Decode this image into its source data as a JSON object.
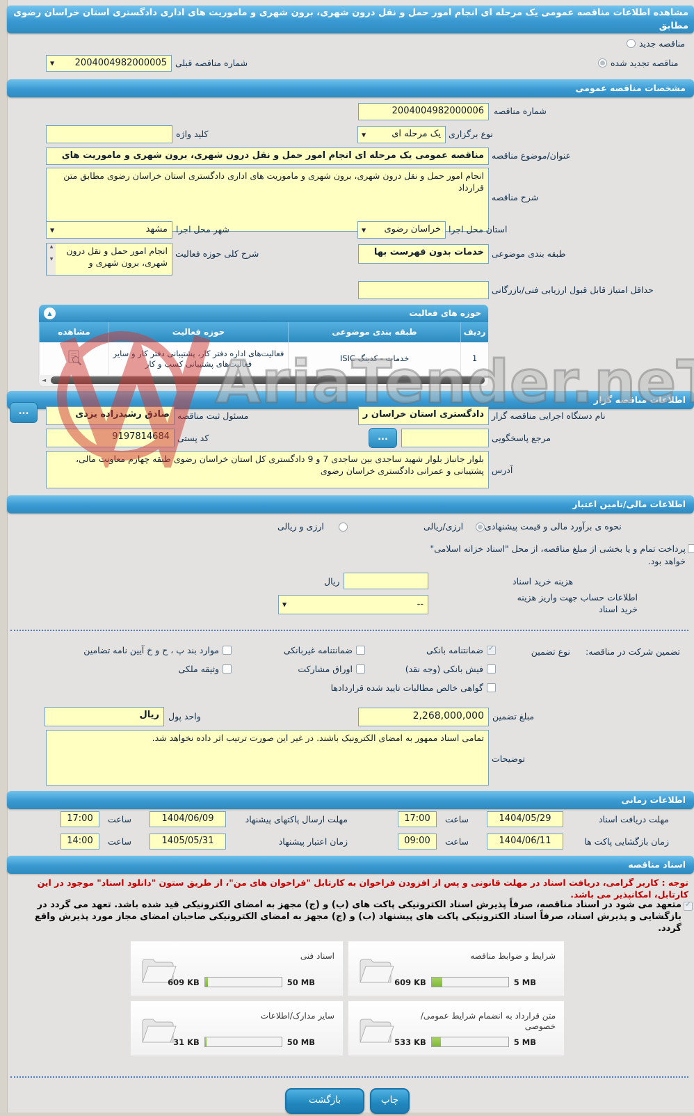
{
  "title": "مشاهده اطلاعات مناقصه عمومی یک مرحله ای انجام امور حمل و نقل درون شهری، برون شهری و ماموریت های اداری دادگستری استان خراسان رضوی مطابق",
  "tender_type": {
    "new_label": "مناقصه جدید",
    "new_checked": false,
    "renewed_label": "مناقصه تجدید شده",
    "renewed_checked": true,
    "prev_number_label": "شماره مناقصه قبلی",
    "prev_number_value": "2004004982000005"
  },
  "general": {
    "header": "مشخصات مناقصه عمومی",
    "number_label": "شماره مناقصه",
    "number_value": "2004004982000006",
    "hold_type_label": "نوع برگزاری",
    "hold_type_value": "یک مرحله ای",
    "keyword_label": "کلید واژه",
    "keyword_value": "",
    "subject_label": "عنوان/موضوع مناقصه",
    "subject_value": "مناقصه عمومی یک مرحله ای انجام امور حمل و نقل درون شهری، برون شهری و ماموریت های",
    "desc_label": "شرح مناقصه",
    "desc_value": "انجام امور حمل و نقل درون شهری، برون شهری و ماموریت های اداری دادگستری استان خراسان رضوی مطابق متن قرارداد",
    "province_label": "استان محل اجرا",
    "province_value": "خراسان رضوی",
    "city_label": "شهر محل اجرا",
    "city_value": "مشهد",
    "class_label": "طبقه بندی موضوعی",
    "class_value": "خدمات بدون فهرست بها",
    "activity_desc_label": "شرح کلی حوزه فعالیت",
    "activity_desc_value": "انجام امور حمل و نقل درون شهری، برون شهری و",
    "min_score_label": "حداقل امتیاز قابل قبول ارزیابی فنی/بازرگانی",
    "min_score_value": ""
  },
  "activity_table": {
    "header": "حوزه های فعالیت",
    "columns": [
      "ردیف",
      "طبقه بندی موضوعی",
      "حوزه فعالیت",
      "مشاهده"
    ],
    "rows": [
      {
        "row_no": "1",
        "category": "خدمات - کدینگ ISIC",
        "field": "فعالیت‌های اداره دفتر کار، پشتیبانی دفتر کار و سایر فعالیت‌های پشتیبانی کسب و کار"
      }
    ]
  },
  "organizer": {
    "header": "اطلاعات مناقصه گزار",
    "agency_label": "نام دستگاه اجرایی مناقصه گزار",
    "agency_value": "دادگستری استان خراسان ر",
    "registrar_label": "مسئول ثبت مناقصه",
    "registrar_value": "صادق رشیدزاده یزدی",
    "ref_label": "مرجع پاسخگویی",
    "ref_value": "",
    "postal_label": "کد پستی",
    "postal_value": "9197814684",
    "address_label": "آدرس",
    "address_value": "بلوار جانباز بلوار شهید ساجدی بین ساجدی 7 و 9 دادگستری کل استان خراسان رضوی طبقه چهارم معاونت مالی، پشتیبانی و عمرانی دادگستری خراسان رضوی",
    "more_button": "..."
  },
  "financial": {
    "header": "اطلاعات مالی/تامین اعتبار",
    "estimate_label": "نحوه ی برآورد مالی و قیمت پیشنهادی",
    "estimate_opt1": "ارزی/ریالی",
    "estimate_opt1_checked": true,
    "estimate_opt2": "ارزی و ریالی",
    "estimate_opt2_checked": false,
    "treasury_note": "پرداخت تمام و یا بخشی از مبلغ مناقصه، از محل \"اسناد خزانه اسلامی\" خواهد بود.",
    "doc_fee_label": "هزینه خرید اسناد",
    "doc_fee_value": "",
    "doc_fee_unit": "ریال",
    "account_label": "اطلاعات حساب جهت واریز هزینه خرید اسناد",
    "account_value": "--"
  },
  "guarantee": {
    "section_label": "تضمین شرکت در مناقصه:",
    "type_label": "نوع تضمین",
    "options": [
      {
        "label": "ضمانتنامه بانکی",
        "checked": true
      },
      {
        "label": "ضمانتنامه غیربانکی",
        "checked": false
      },
      {
        "label": "موارد بند پ ، ح و خ آیین نامه تضامین",
        "checked": false
      },
      {
        "label": "فیش بانکی (وجه نقد)",
        "checked": false
      },
      {
        "label": "اوراق مشارکت",
        "checked": false
      },
      {
        "label": "وثیقه ملکی",
        "checked": false
      },
      {
        "label": "گواهی خالص مطالبات تایید شده قراردادها",
        "checked": false
      }
    ],
    "amount_label": "مبلغ تضمین",
    "amount_value": "2,268,000,000",
    "currency_label": "واحد پول",
    "currency_value": "ریال",
    "notes_label": "توضیحات",
    "notes_value": "تمامی اسناد ممهور به امضای الکترونیک باشند. در غیر این صورت ترتیب اثر داده نخواهد شد."
  },
  "schedule": {
    "header": "اطلاعات زمانی",
    "rows": [
      {
        "label": "مهلت دریافت اسناد",
        "date": "1404/05/29",
        "time_label": "ساعت",
        "time": "17:00"
      },
      {
        "label": "مهلت ارسال پاکتهای پیشنهاد",
        "date": "1404/06/09",
        "time_label": "ساعت",
        "time": "17:00"
      },
      {
        "label": "زمان بازگشایی پاکت ها",
        "date": "1404/06/11",
        "time_label": "ساعت",
        "time": "09:00"
      },
      {
        "label": "زمان اعتبار پیشنهاد",
        "date": "1405/05/31",
        "time_label": "ساعت",
        "time": "14:00"
      }
    ]
  },
  "documents": {
    "header": "اسناد مناقصه",
    "notice": "توجه : کاربر گرامی، دریافت اسناد در مهلت قانونی و پس از افزودن فراخوان به کارتابل \"فراخوان های من\"، از طریق ستون \"دانلود اسناد\" موجود در این کارتابل، امکانپذیر می باشد.",
    "commitment": "متعهد می شود در اسناد مناقصه، صرفاً پذیرش اسناد الکترونیکی پاکت های (ب) و (ج) مجهز به امضای الکترونیکی قید شده باشد. تعهد می گردد در بازگشایی و پذیرش اسناد، صرفاً اسناد الکترونیکی پاکت های پیشنهاد (ب) و (ج) مجهز به امضای الکترونیکی صاحبان امضای مجاز مورد پذیرش واقع گردد.",
    "commitment_checked": true,
    "files": [
      {
        "label": "شرایط و ضوابط مناقصه",
        "size": "609 KB",
        "max": "5 MB",
        "fill": 14
      },
      {
        "label": "اسناد فنی",
        "size": "609 KB",
        "max": "50 MB",
        "fill": 4
      },
      {
        "label": "متن قرارداد به انضمام شرایط عمومی/خصوصی",
        "size": "533 KB",
        "max": "5 MB",
        "fill": 12
      },
      {
        "label": "سایر مدارک/اطلاعات",
        "size": "31 KB",
        "max": "50 MB",
        "fill": 2
      }
    ]
  },
  "footer": {
    "back_label": "بازگشت",
    "print_label": "چاپ"
  },
  "watermark": {
    "text": "AriaTender.neT"
  }
}
